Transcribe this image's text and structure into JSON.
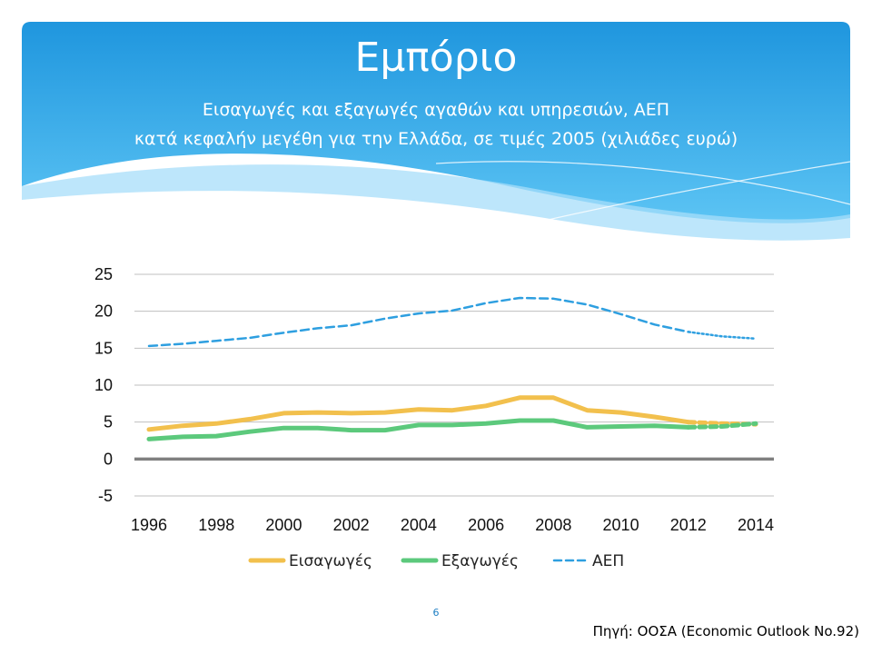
{
  "slide": {
    "title": "Εμπόριο",
    "subtitle_line1": "Εισαγωγές και εξαγωγές αγαθών και υπηρεσιών, ΑΕΠ",
    "subtitle_line2": "κατά κεφαλήν μεγέθη για την Ελλάδα, σε τιμές 2005 (χιλιάδες ευρώ)",
    "page_number": "6",
    "source": "Πηγή: ΟΟΣΑ (Economic Outlook No.92)"
  },
  "colors": {
    "header_blue": "#2aa3e6",
    "header_light": "#7fd0f7",
    "imports": "#f2c04d",
    "exports": "#5cc97c",
    "gdp": "#2e9fe0",
    "zero_line": "#808080",
    "grid": "#bfbfbf"
  },
  "chart_data": {
    "type": "line",
    "title": "",
    "xlabel": "",
    "ylabel": "",
    "ylim": [
      -5,
      25
    ],
    "yticks": [
      -5,
      0,
      5,
      10,
      15,
      20,
      25
    ],
    "xlim": [
      1996,
      2014
    ],
    "xticks": [
      1996,
      1998,
      2000,
      2002,
      2004,
      2006,
      2008,
      2010,
      2012,
      2014
    ],
    "grid": true,
    "legend_position": "bottom",
    "x": [
      1996,
      1997,
      1998,
      1999,
      2000,
      2001,
      2002,
      2003,
      2004,
      2005,
      2006,
      2007,
      2008,
      2009,
      2010,
      2011,
      2012,
      2013,
      2014
    ],
    "series": [
      {
        "name": "Εισαγωγές",
        "color": "#f2c04d",
        "style": "solid",
        "projection_from": 2012,
        "values": [
          4.0,
          4.5,
          4.8,
          5.4,
          6.2,
          6.3,
          6.2,
          6.3,
          6.7,
          6.6,
          7.2,
          8.3,
          8.3,
          6.6,
          6.3,
          5.7,
          5.0,
          4.8,
          4.7
        ]
      },
      {
        "name": "Εξαγωγές",
        "color": "#5cc97c",
        "style": "solid",
        "projection_from": 2012,
        "values": [
          2.7,
          3.0,
          3.1,
          3.7,
          4.2,
          4.2,
          3.9,
          3.9,
          4.6,
          4.6,
          4.8,
          5.2,
          5.2,
          4.3,
          4.4,
          4.5,
          4.3,
          4.4,
          4.8
        ]
      },
      {
        "name": "ΑΕΠ",
        "color": "#2e9fe0",
        "style": "dashed",
        "projection_from": 2012,
        "values": [
          15.3,
          15.6,
          16.0,
          16.4,
          17.1,
          17.7,
          18.1,
          19.0,
          19.7,
          20.1,
          21.1,
          21.8,
          21.7,
          20.9,
          19.6,
          18.2,
          17.2,
          16.6,
          16.3
        ]
      }
    ]
  }
}
